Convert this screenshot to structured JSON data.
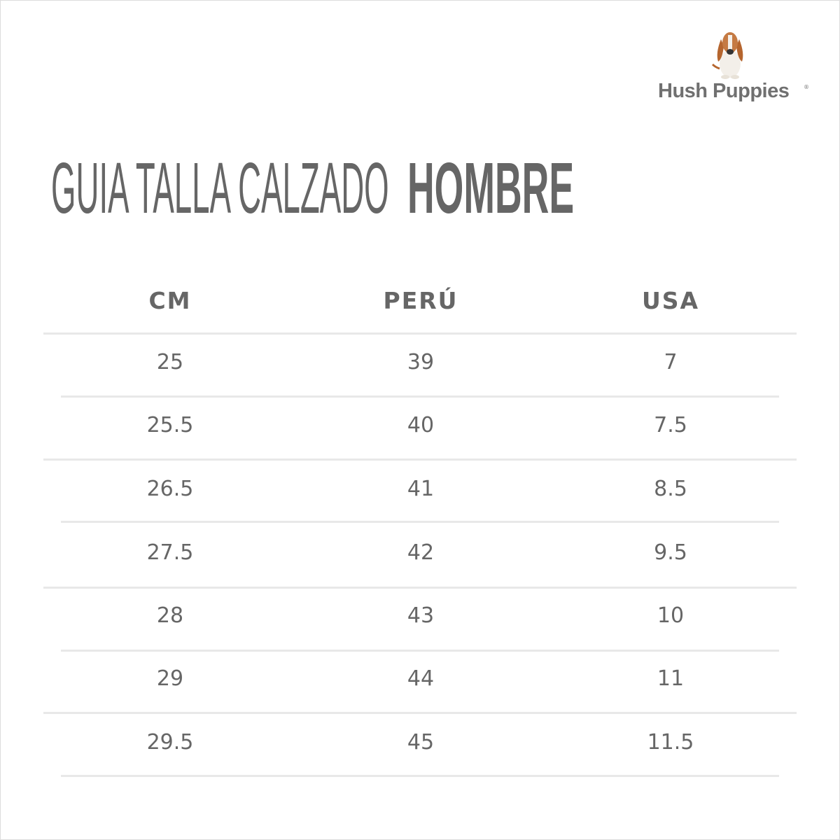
{
  "brand": {
    "name": "Hush Puppies",
    "registered": "®",
    "logo_icon": "basset-hound-icon"
  },
  "title": {
    "regular": "GUIA TALLA CALZADO",
    "bold": "HOMBRE"
  },
  "table": {
    "headers": [
      "CM",
      "PERÚ",
      "USA"
    ],
    "rows": [
      [
        "25",
        "39",
        "7"
      ],
      [
        "25.5",
        "40",
        "7.5"
      ],
      [
        "26.5",
        "41",
        "8.5"
      ],
      [
        "27.5",
        "42",
        "9.5"
      ],
      [
        "28",
        "43",
        "10"
      ],
      [
        "29",
        "44",
        "11"
      ],
      [
        "29.5",
        "45",
        "11.5"
      ]
    ]
  },
  "colors": {
    "text": "#666666",
    "divider": "#e8e8e8"
  }
}
